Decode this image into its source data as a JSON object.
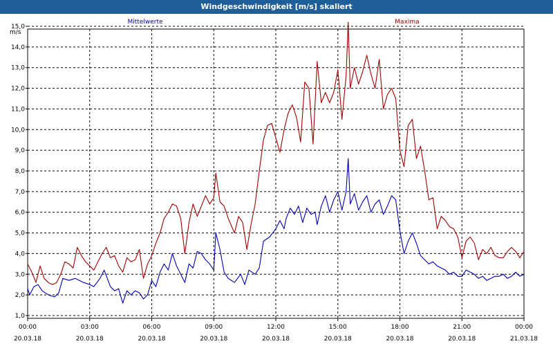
{
  "window": {
    "title": "Windgeschwindigkeit [m/s] skaliert"
  },
  "colors": {
    "titlebar": "#1f5f99",
    "series_mean": "#0000b0",
    "series_max": "#a00000",
    "grid": "#000000"
  },
  "chart_data": {
    "type": "line",
    "title": "Windgeschwindigkeit [m/s] skaliert",
    "ylabel": "m/s",
    "xlabel": "",
    "ylim": [
      1.0,
      15.0
    ],
    "xlim_hours": [
      0,
      24
    ],
    "grid": true,
    "legend_placement": "top",
    "yticks": [
      "1,0",
      "2,0",
      "3,0",
      "4,0",
      "5,0",
      "6,0",
      "7,0",
      "8,0",
      "9,0",
      "10,0",
      "11,0",
      "12,0",
      "13,0",
      "14,0",
      "15,0"
    ],
    "xticks": [
      {
        "time": "00:00",
        "date": "20.03.18"
      },
      {
        "time": "03:00",
        "date": "20.03.18"
      },
      {
        "time": "06:00",
        "date": "20.03.18"
      },
      {
        "time": "09:00",
        "date": "20.03.18"
      },
      {
        "time": "12:00",
        "date": "20.03.18"
      },
      {
        "time": "15:00",
        "date": "20.03.18"
      },
      {
        "time": "18:00",
        "date": "20.03.18"
      },
      {
        "time": "21:00",
        "date": "20.03.18"
      },
      {
        "time": "00:00",
        "date": "21.03.18"
      }
    ],
    "series": [
      {
        "name": "Mittelwerte",
        "color": "#0000b0",
        "points": [
          [
            0.0,
            2.3
          ],
          [
            0.1,
            2.0
          ],
          [
            0.3,
            2.4
          ],
          [
            0.5,
            2.5
          ],
          [
            0.7,
            2.2
          ],
          [
            1.0,
            2.0
          ],
          [
            1.3,
            1.9
          ],
          [
            1.5,
            2.1
          ],
          [
            1.7,
            2.8
          ],
          [
            2.0,
            2.7
          ],
          [
            2.3,
            2.8
          ],
          [
            2.5,
            2.7
          ],
          [
            2.7,
            2.6
          ],
          [
            3.0,
            2.5
          ],
          [
            3.2,
            2.4
          ],
          [
            3.5,
            2.8
          ],
          [
            3.7,
            3.2
          ],
          [
            4.0,
            2.4
          ],
          [
            4.2,
            2.2
          ],
          [
            4.4,
            2.3
          ],
          [
            4.6,
            1.6
          ],
          [
            4.8,
            2.2
          ],
          [
            5.0,
            2.0
          ],
          [
            5.2,
            2.2
          ],
          [
            5.4,
            2.1
          ],
          [
            5.6,
            1.8
          ],
          [
            5.8,
            2.0
          ],
          [
            6.0,
            2.7
          ],
          [
            6.2,
            2.4
          ],
          [
            6.4,
            3.1
          ],
          [
            6.6,
            3.5
          ],
          [
            6.8,
            3.2
          ],
          [
            7.0,
            4.0
          ],
          [
            7.2,
            3.4
          ],
          [
            7.4,
            3.0
          ],
          [
            7.6,
            2.6
          ],
          [
            7.8,
            3.5
          ],
          [
            8.0,
            3.3
          ],
          [
            8.2,
            4.1
          ],
          [
            8.4,
            4.0
          ],
          [
            8.6,
            3.7
          ],
          [
            8.8,
            3.5
          ],
          [
            9.0,
            3.2
          ],
          [
            9.1,
            5.0
          ],
          [
            9.3,
            4.2
          ],
          [
            9.5,
            3.1
          ],
          [
            9.7,
            2.8
          ],
          [
            10.0,
            2.6
          ],
          [
            10.3,
            3.0
          ],
          [
            10.5,
            2.5
          ],
          [
            10.7,
            3.2
          ],
          [
            11.0,
            3.0
          ],
          [
            11.2,
            3.3
          ],
          [
            11.4,
            4.6
          ],
          [
            11.7,
            4.8
          ],
          [
            12.0,
            5.2
          ],
          [
            12.2,
            5.6
          ],
          [
            12.4,
            5.2
          ],
          [
            12.5,
            5.7
          ],
          [
            12.7,
            6.2
          ],
          [
            12.9,
            5.9
          ],
          [
            13.1,
            6.3
          ],
          [
            13.3,
            5.5
          ],
          [
            13.5,
            6.2
          ],
          [
            13.7,
            5.9
          ],
          [
            13.9,
            6.0
          ],
          [
            14.0,
            5.4
          ],
          [
            14.2,
            6.3
          ],
          [
            14.4,
            6.8
          ],
          [
            14.6,
            6.0
          ],
          [
            14.8,
            6.6
          ],
          [
            15.0,
            7.0
          ],
          [
            15.2,
            6.1
          ],
          [
            15.4,
            7.0
          ],
          [
            15.5,
            8.6
          ],
          [
            15.6,
            6.4
          ],
          [
            15.8,
            6.9
          ],
          [
            16.0,
            6.1
          ],
          [
            16.2,
            6.5
          ],
          [
            16.4,
            6.8
          ],
          [
            16.6,
            6.0
          ],
          [
            16.8,
            6.4
          ],
          [
            17.0,
            6.6
          ],
          [
            17.2,
            5.9
          ],
          [
            17.4,
            6.3
          ],
          [
            17.6,
            6.8
          ],
          [
            17.8,
            6.6
          ],
          [
            18.0,
            5.1
          ],
          [
            18.2,
            4.0
          ],
          [
            18.4,
            4.6
          ],
          [
            18.6,
            5.0
          ],
          [
            18.8,
            4.5
          ],
          [
            19.0,
            3.9
          ],
          [
            19.2,
            3.7
          ],
          [
            19.4,
            3.5
          ],
          [
            19.6,
            3.6
          ],
          [
            19.8,
            3.4
          ],
          [
            20.0,
            3.3
          ],
          [
            20.2,
            3.2
          ],
          [
            20.4,
            3.0
          ],
          [
            20.6,
            3.1
          ],
          [
            20.8,
            2.9
          ],
          [
            21.0,
            2.9
          ],
          [
            21.2,
            3.2
          ],
          [
            21.4,
            3.1
          ],
          [
            21.6,
            3.0
          ],
          [
            21.8,
            2.8
          ],
          [
            22.0,
            2.9
          ],
          [
            22.2,
            2.7
          ],
          [
            22.4,
            2.8
          ],
          [
            22.6,
            2.9
          ],
          [
            22.8,
            2.9
          ],
          [
            23.0,
            3.0
          ],
          [
            23.2,
            2.8
          ],
          [
            23.4,
            2.9
          ],
          [
            23.6,
            3.1
          ],
          [
            23.8,
            2.9
          ],
          [
            24.0,
            3.0
          ]
        ]
      },
      {
        "name": "Maxima",
        "color": "#a00000",
        "points": [
          [
            0.0,
            3.5
          ],
          [
            0.2,
            3.1
          ],
          [
            0.4,
            2.6
          ],
          [
            0.6,
            3.4
          ],
          [
            0.8,
            2.8
          ],
          [
            1.0,
            2.6
          ],
          [
            1.2,
            2.5
          ],
          [
            1.4,
            2.6
          ],
          [
            1.6,
            3.0
          ],
          [
            1.8,
            3.6
          ],
          [
            2.0,
            3.5
          ],
          [
            2.2,
            3.3
          ],
          [
            2.4,
            4.3
          ],
          [
            2.6,
            3.9
          ],
          [
            2.8,
            3.6
          ],
          [
            3.0,
            3.4
          ],
          [
            3.2,
            3.2
          ],
          [
            3.4,
            3.6
          ],
          [
            3.6,
            4.0
          ],
          [
            3.8,
            4.3
          ],
          [
            4.0,
            3.8
          ],
          [
            4.2,
            3.9
          ],
          [
            4.4,
            3.4
          ],
          [
            4.6,
            3.1
          ],
          [
            4.8,
            3.8
          ],
          [
            5.0,
            3.6
          ],
          [
            5.2,
            3.7
          ],
          [
            5.4,
            4.2
          ],
          [
            5.6,
            2.8
          ],
          [
            5.8,
            3.5
          ],
          [
            6.0,
            3.9
          ],
          [
            6.2,
            4.5
          ],
          [
            6.4,
            5.0
          ],
          [
            6.6,
            5.7
          ],
          [
            6.8,
            6.0
          ],
          [
            7.0,
            6.4
          ],
          [
            7.2,
            6.3
          ],
          [
            7.4,
            5.7
          ],
          [
            7.6,
            4.0
          ],
          [
            7.8,
            5.5
          ],
          [
            8.0,
            6.4
          ],
          [
            8.2,
            5.8
          ],
          [
            8.4,
            6.3
          ],
          [
            8.6,
            6.8
          ],
          [
            8.8,
            6.4
          ],
          [
            9.0,
            6.7
          ],
          [
            9.1,
            7.9
          ],
          [
            9.3,
            6.5
          ],
          [
            9.5,
            6.3
          ],
          [
            9.7,
            5.7
          ],
          [
            10.0,
            5.0
          ],
          [
            10.2,
            5.8
          ],
          [
            10.4,
            5.5
          ],
          [
            10.6,
            4.2
          ],
          [
            10.8,
            5.4
          ],
          [
            11.0,
            6.4
          ],
          [
            11.2,
            8.0
          ],
          [
            11.4,
            9.5
          ],
          [
            11.6,
            10.2
          ],
          [
            11.8,
            10.3
          ],
          [
            12.0,
            9.6
          ],
          [
            12.2,
            8.9
          ],
          [
            12.4,
            10.0
          ],
          [
            12.6,
            10.8
          ],
          [
            12.8,
            11.2
          ],
          [
            13.0,
            10.6
          ],
          [
            13.2,
            9.4
          ],
          [
            13.4,
            12.3
          ],
          [
            13.6,
            12.0
          ],
          [
            13.8,
            9.3
          ],
          [
            14.0,
            13.3
          ],
          [
            14.2,
            11.3
          ],
          [
            14.4,
            11.8
          ],
          [
            14.6,
            11.3
          ],
          [
            14.8,
            11.8
          ],
          [
            15.0,
            12.9
          ],
          [
            15.2,
            10.5
          ],
          [
            15.4,
            12.6
          ],
          [
            15.5,
            15.2
          ],
          [
            15.6,
            12.0
          ],
          [
            15.8,
            13.0
          ],
          [
            16.0,
            12.2
          ],
          [
            16.2,
            12.8
          ],
          [
            16.4,
            13.6
          ],
          [
            16.6,
            12.7
          ],
          [
            16.8,
            12.0
          ],
          [
            17.0,
            13.4
          ],
          [
            17.2,
            11.0
          ],
          [
            17.4,
            11.7
          ],
          [
            17.6,
            12.0
          ],
          [
            17.8,
            11.5
          ],
          [
            18.0,
            9.0
          ],
          [
            18.2,
            8.2
          ],
          [
            18.4,
            10.2
          ],
          [
            18.6,
            10.5
          ],
          [
            18.8,
            8.6
          ],
          [
            19.0,
            9.2
          ],
          [
            19.2,
            8.0
          ],
          [
            19.4,
            6.6
          ],
          [
            19.6,
            6.7
          ],
          [
            19.8,
            5.2
          ],
          [
            20.0,
            5.8
          ],
          [
            20.2,
            5.6
          ],
          [
            20.4,
            5.3
          ],
          [
            20.6,
            5.2
          ],
          [
            20.8,
            4.8
          ],
          [
            21.0,
            3.8
          ],
          [
            21.2,
            4.6
          ],
          [
            21.4,
            4.8
          ],
          [
            21.6,
            4.5
          ],
          [
            21.8,
            3.7
          ],
          [
            22.0,
            4.2
          ],
          [
            22.2,
            4.0
          ],
          [
            22.4,
            4.3
          ],
          [
            22.6,
            3.9
          ],
          [
            22.8,
            3.8
          ],
          [
            23.0,
            3.8
          ],
          [
            23.2,
            4.1
          ],
          [
            23.4,
            4.3
          ],
          [
            23.6,
            4.1
          ],
          [
            23.8,
            3.8
          ],
          [
            24.0,
            4.1
          ]
        ]
      }
    ]
  }
}
